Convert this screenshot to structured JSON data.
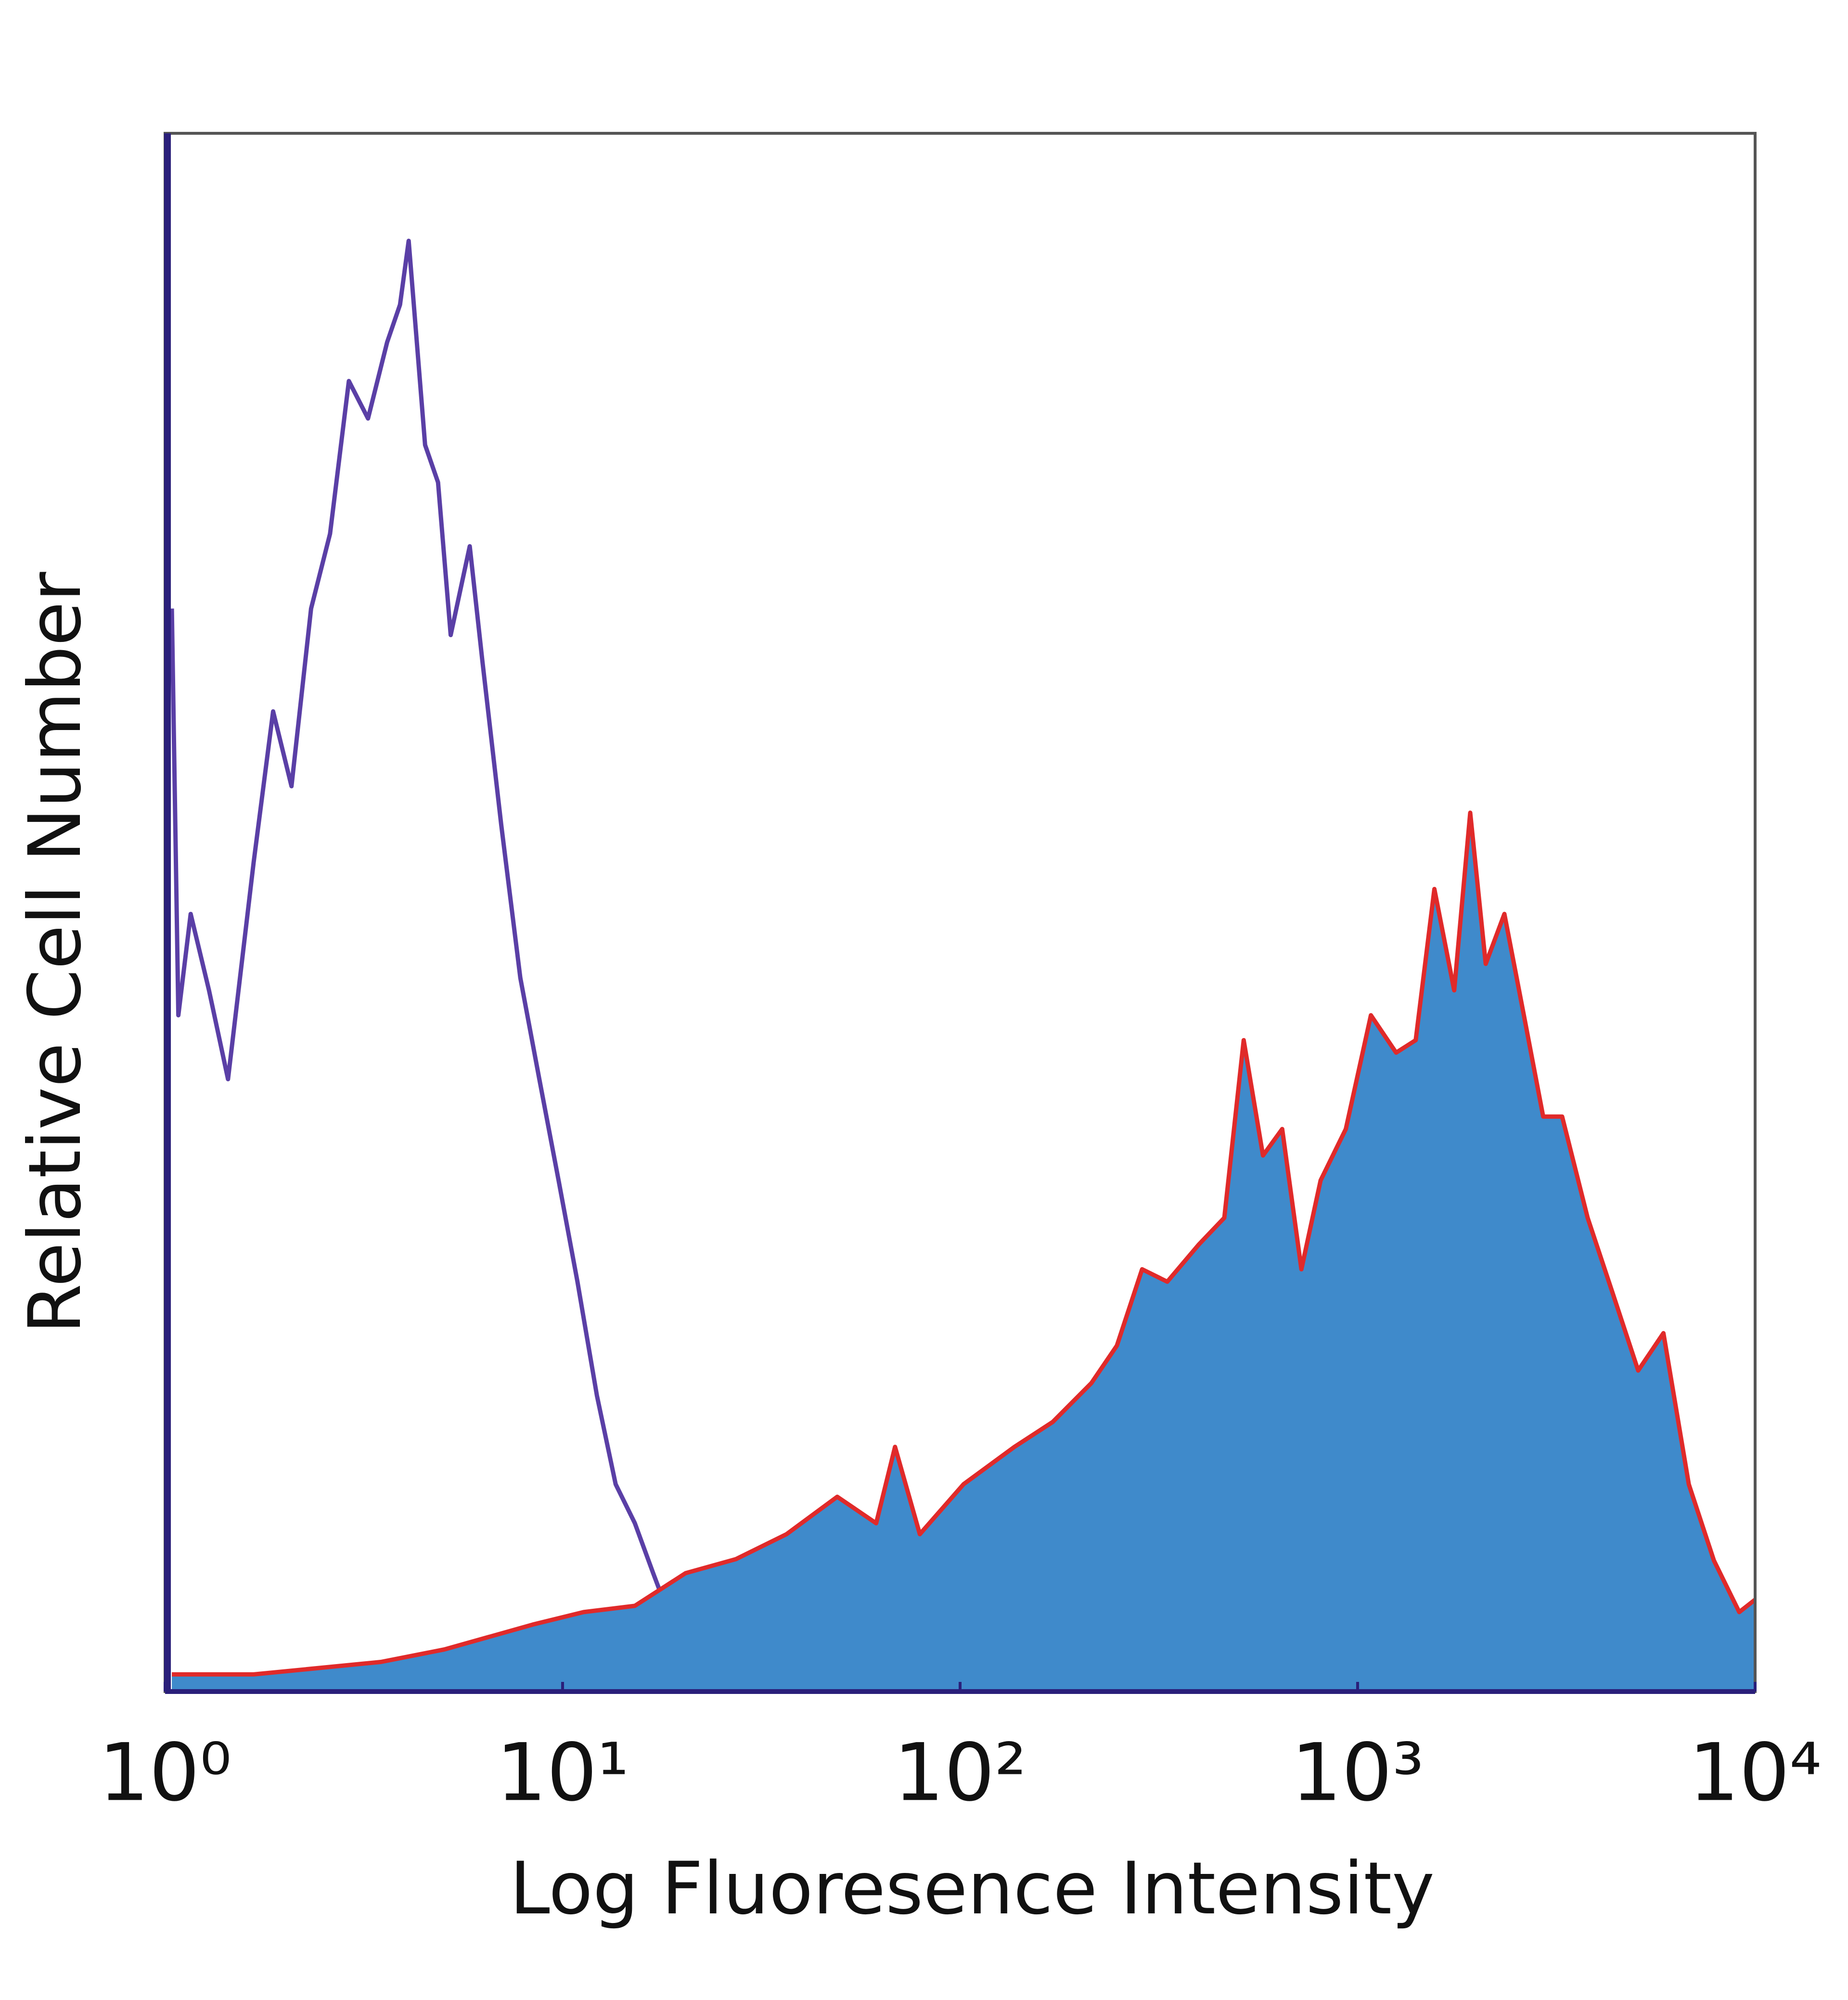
{
  "chart_data": {
    "type": "histogram",
    "xlabel": "Log Fluoresence Intensity",
    "ylabel": "Relative Cell Number",
    "xscale": "log",
    "xlim": [
      1,
      10000
    ],
    "xticks": [
      {
        "value": 1,
        "label": "10⁰"
      },
      {
        "value": 10,
        "label": "10¹"
      },
      {
        "value": 100,
        "label": "10²"
      },
      {
        "value": 1000,
        "label": "10³"
      },
      {
        "value": 10000,
        "label": "10⁴"
      }
    ],
    "ylim": [
      0,
      100
    ],
    "series": [
      {
        "color": "#5a3fa6",
        "fill": "none",
        "x": [
          1.04,
          1.08,
          1.16,
          1.29,
          1.44,
          1.67,
          1.87,
          2.08,
          2.33,
          2.6,
          2.9,
          3.24,
          3.62,
          3.9,
          4.1,
          4.51,
          4.86,
          5.23,
          5.84,
          6.28,
          7.01,
          7.83,
          8.74,
          9.77,
          10.9,
          12.2,
          13.6,
          15.2,
          16.9,
          18.9,
          21.1,
          23.6,
          27.3,
          31.6,
          39.4,
          65.9
        ],
        "values": [
          69.5,
          43.4,
          49.9,
          45.0,
          39.3,
          53.2,
          62.9,
          58.1,
          69.5,
          74.3,
          84.1,
          81.7,
          86.6,
          89.0,
          93.1,
          80.0,
          77.6,
          67.8,
          73.5,
          66.2,
          55.6,
          45.8,
          39.3,
          32.8,
          26.3,
          19.0,
          13.3,
          10.8,
          7.6,
          4.3,
          3.1,
          1.5,
          0.2,
          1.1,
          0.2,
          0
        ]
      },
      {
        "color": "#e02a2a",
        "fill": "#3f8acb",
        "x": [
          1.04,
          1.67,
          3.49,
          5.04,
          8.42,
          11.3,
          15.2,
          20.4,
          27.3,
          36.6,
          49.1,
          61.5,
          68.6,
          79.2,
          102,
          137,
          171,
          214,
          248,
          287,
          332,
          399,
          462,
          517,
          578,
          646,
          722,
          807,
          934,
          1080,
          1250,
          1400,
          1560,
          1750,
          1920,
          2100,
          2340,
          2620,
          2930,
          3270,
          3790,
          4390,
          5080,
          5880,
          6810,
          7880,
          9120,
          10000
        ],
        "values": [
          1.1,
          1.1,
          1.9,
          2.7,
          4.3,
          5.1,
          5.5,
          7.6,
          8.5,
          10.1,
          12.5,
          10.8,
          15.7,
          10.1,
          13.3,
          15.7,
          17.3,
          19.8,
          22.2,
          27.1,
          26.3,
          28.7,
          30.4,
          41.8,
          34.4,
          36.1,
          27.1,
          32.8,
          36.1,
          43.4,
          41.0,
          41.8,
          51.5,
          45.0,
          56.4,
          46.7,
          49.9,
          43.4,
          36.9,
          36.9,
          30.4,
          25.5,
          20.6,
          23.0,
          13.3,
          8.4,
          5.1,
          5.9
        ]
      }
    ]
  }
}
